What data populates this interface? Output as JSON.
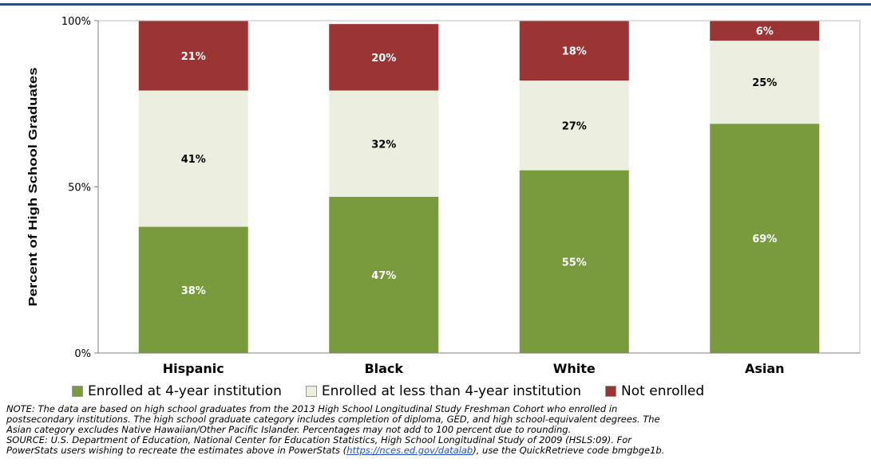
{
  "chart_data": {
    "type": "bar",
    "stacked": true,
    "categories": [
      "Hispanic",
      "Black",
      "White",
      "Asian"
    ],
    "series": [
      {
        "name": "Enrolled at 4-year institution",
        "values": [
          38,
          47,
          55,
          69
        ],
        "labels": [
          "38%",
          "47%",
          "55%",
          "69%"
        ],
        "color": "#7a9a3e",
        "label_color": "#ffffff"
      },
      {
        "name": "Enrolled at less than 4-year institution",
        "values": [
          41,
          32,
          27,
          25
        ],
        "labels": [
          "41%",
          "32%",
          "27%",
          "25%"
        ],
        "color": "#ecefdf",
        "label_color": "#000000"
      },
      {
        "name": "Not enrolled",
        "values": [
          21,
          20,
          18,
          6
        ],
        "labels": [
          "21%",
          "20%",
          "18%",
          "6%"
        ],
        "color": "#9b3533",
        "label_color": "#ffffff"
      }
    ],
    "ylabel": "Percent of High School Graduates",
    "ylim": [
      0,
      100
    ],
    "yticks": [
      {
        "value": 0,
        "label": "0%"
      },
      {
        "value": 50,
        "label": "50%"
      },
      {
        "value": 100,
        "label": "100%"
      }
    ],
    "grid": false,
    "legend_position": "bottom"
  },
  "notes": {
    "line1": "NOTE: The data are based on high school graduates from the 2013 High School Longitudinal Study Freshman Cohort who enrolled in",
    "line2": "postsecondary institutions. The high school graduate category includes completion of diploma, GED, and high school-equivalent degrees. The",
    "line3": "Asian category excludes Native Hawaiian/Other Pacific Islander. Percentages may not add to 100 percent due to rounding.",
    "line4": "SOURCE: U.S. Department of Education, National Center for Education Statistics, High School Longitudinal Study of 2009 (HSLS:09). For",
    "line5_pre": "PowerStats users wishing to recreate the estimates above in PowerStats (",
    "line5_link": "https://nces.ed.gov/datalab",
    "line5_post": "), use the QuickRetrieve code bmgbge1b."
  }
}
